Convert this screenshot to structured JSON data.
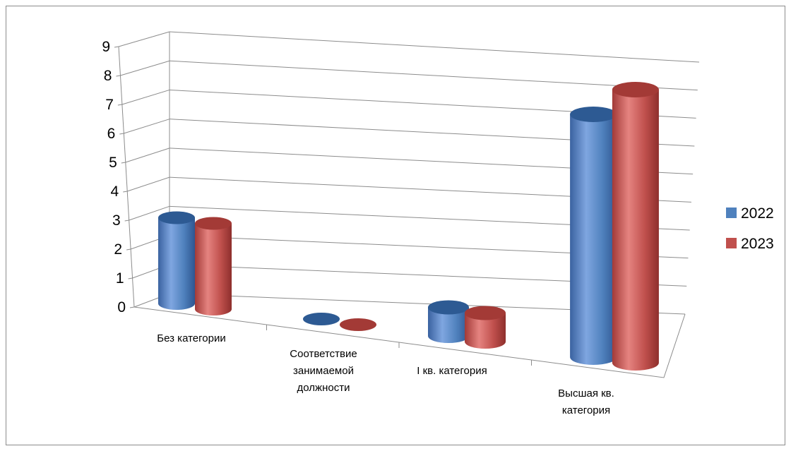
{
  "chart_data": {
    "type": "bar",
    "style": "3d-cylinder",
    "categories": [
      "Без категории",
      "Соответствие занимаемой должности",
      "I кв. категория",
      "Высшая кв. категория"
    ],
    "series": [
      {
        "name": "2022",
        "values": [
          3,
          0,
          1,
          8
        ],
        "color": "#4F81BD"
      },
      {
        "name": "2023",
        "values": [
          3,
          0,
          1,
          9
        ],
        "color": "#C0504D"
      }
    ],
    "ylim": [
      0,
      9
    ],
    "yticks": [
      0,
      1,
      2,
      3,
      4,
      5,
      6,
      7,
      8,
      9
    ],
    "grid": true,
    "legend_position": "right"
  }
}
